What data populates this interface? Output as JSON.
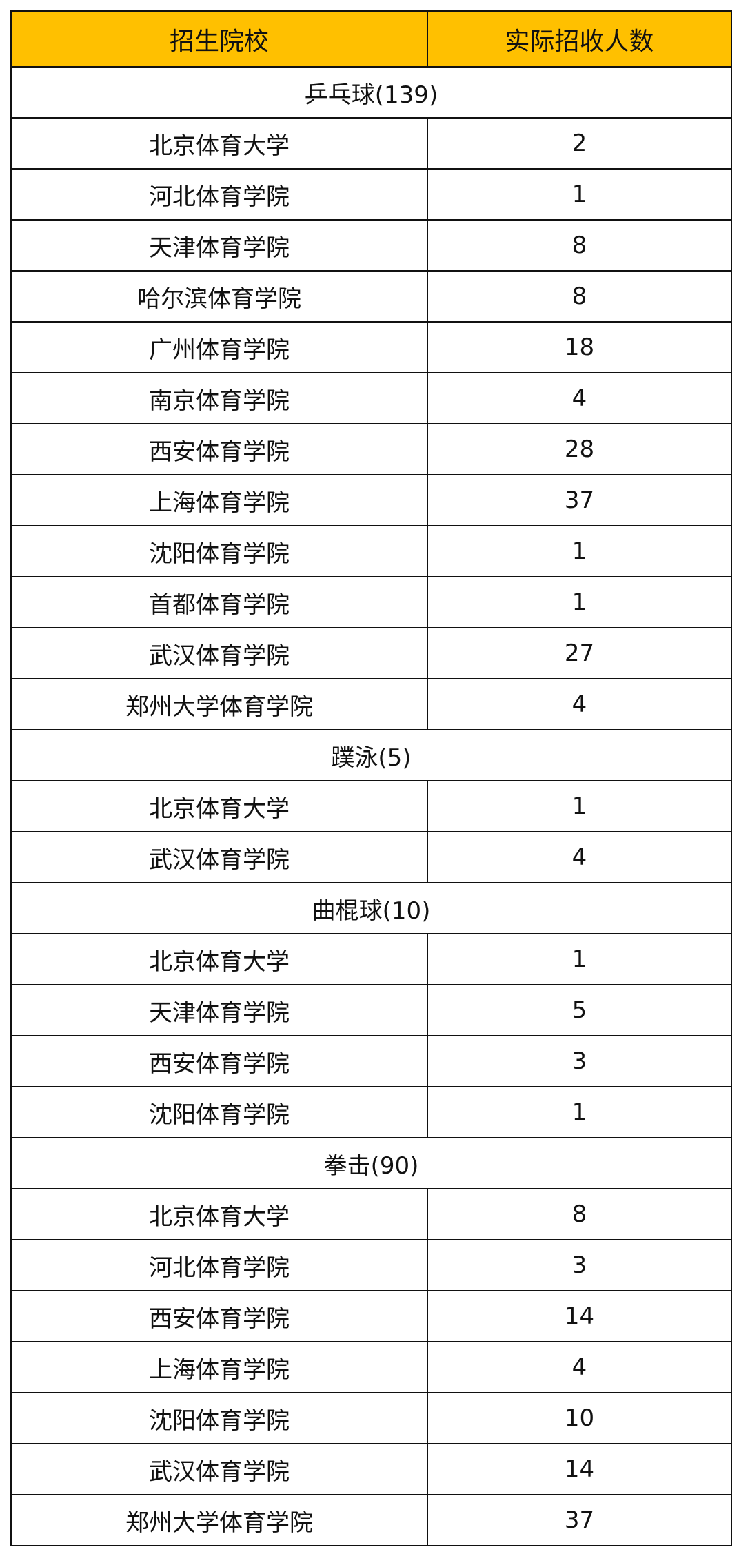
{
  "colors": {
    "header_bg": "#FFC000"
  },
  "headers": [
    "招生院校",
    "实际招收人数"
  ],
  "sections": [
    {
      "title": "乒乓球(139)",
      "rows": [
        [
          "北京体育大学",
          "2"
        ],
        [
          "河北体育学院",
          "1"
        ],
        [
          "天津体育学院",
          "8"
        ],
        [
          "哈尔滨体育学院",
          "8"
        ],
        [
          "广州体育学院",
          "18"
        ],
        [
          "南京体育学院",
          "4"
        ],
        [
          "西安体育学院",
          "28"
        ],
        [
          "上海体育学院",
          "37"
        ],
        [
          "沈阳体育学院",
          "1"
        ],
        [
          "首都体育学院",
          "1"
        ],
        [
          "武汉体育学院",
          "27"
        ],
        [
          "郑州大学体育学院",
          "4"
        ]
      ]
    },
    {
      "title": "蹼泳(5)",
      "rows": [
        [
          "北京体育大学",
          "1"
        ],
        [
          "武汉体育学院",
          "4"
        ]
      ]
    },
    {
      "title": "曲棍球(10)",
      "rows": [
        [
          "北京体育大学",
          "1"
        ],
        [
          "天津体育学院",
          "5"
        ],
        [
          "西安体育学院",
          "3"
        ],
        [
          "沈阳体育学院",
          "1"
        ]
      ]
    },
    {
      "title": "拳击(90)",
      "rows": [
        [
          "北京体育大学",
          "8"
        ],
        [
          "河北体育学院",
          "3"
        ],
        [
          "西安体育学院",
          "14"
        ],
        [
          "上海体育学院",
          "4"
        ],
        [
          "沈阳体育学院",
          "10"
        ],
        [
          "武汉体育学院",
          "14"
        ],
        [
          "郑州大学体育学院",
          "37"
        ]
      ]
    }
  ]
}
